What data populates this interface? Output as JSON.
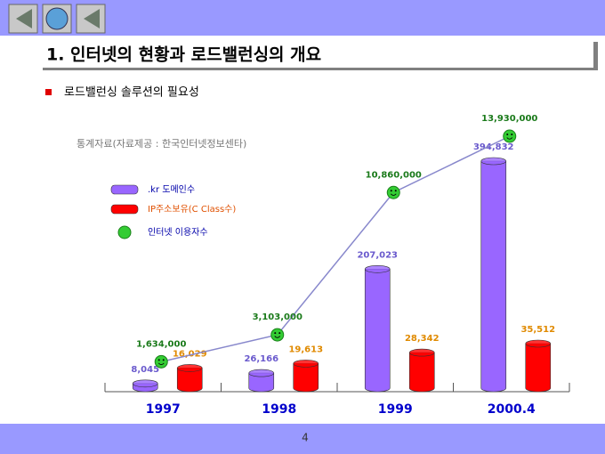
{
  "slide": {
    "title": "1. 인터넷의 현황과 로드밸런싱의 개요",
    "bullet": "로드밸런싱 솔루션의 필요성",
    "source_note": "통계자료(자료제공 : 한국인터넷정보센타)",
    "page_number": "4"
  },
  "chart_data": {
    "type": "bar",
    "categories": [
      "1997",
      "1998",
      "1999",
      "2000.4"
    ],
    "series": [
      {
        "name": ".kr 도메인수",
        "color": "#9966ff",
        "values": [
          8045,
          26166,
          207023,
          394832
        ],
        "value_labels": [
          "8,045",
          "26,166",
          "207,023",
          "394,832"
        ]
      },
      {
        "name": "IP주소보유(C Class수)",
        "color": "#ff0000",
        "values": [
          16029,
          19613,
          28342,
          35512
        ],
        "value_labels": [
          "16,029",
          "19,613",
          "28,342",
          "35,512"
        ]
      },
      {
        "name": "인터넷 이용자수",
        "color": "#33cc33",
        "type": "line",
        "values": [
          1634000,
          3103000,
          10860000,
          13930000
        ],
        "value_labels": [
          "1,634,000",
          "3,103,000",
          "10,860,000",
          "13,930,000"
        ]
      }
    ]
  }
}
